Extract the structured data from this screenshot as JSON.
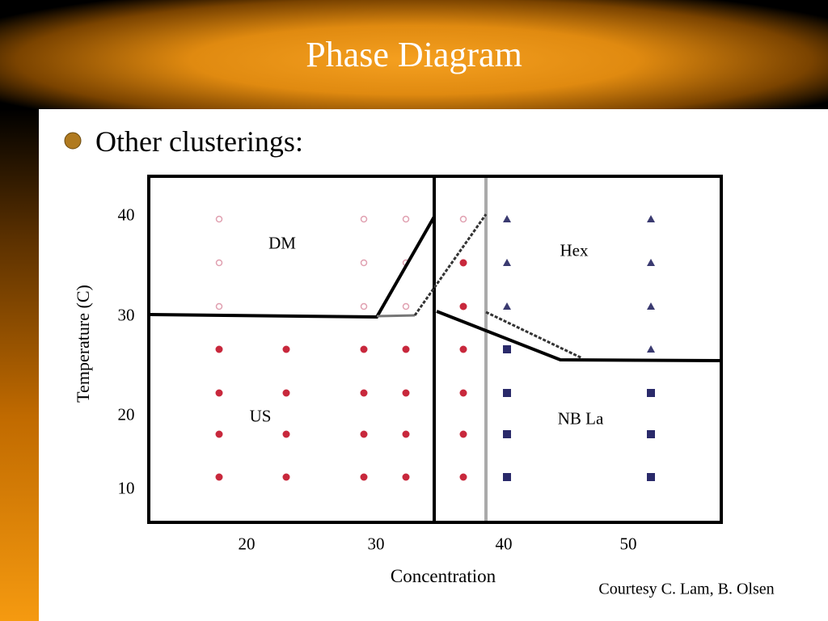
{
  "slide": {
    "title": "Phase Diagram",
    "bullets": [
      "Other clusterings:"
    ]
  },
  "figure": {
    "y_labels": [
      "40",
      "30",
      "20",
      "10"
    ],
    "x_labels": [
      "20",
      "30",
      "40",
      "50"
    ],
    "x_title": "Concentration",
    "y_title": "Temperature (C)",
    "regions": [
      "DM",
      "Hex",
      "US",
      "NB La"
    ]
  },
  "credit": "Courtesy C. Lam, B. Olsen"
}
